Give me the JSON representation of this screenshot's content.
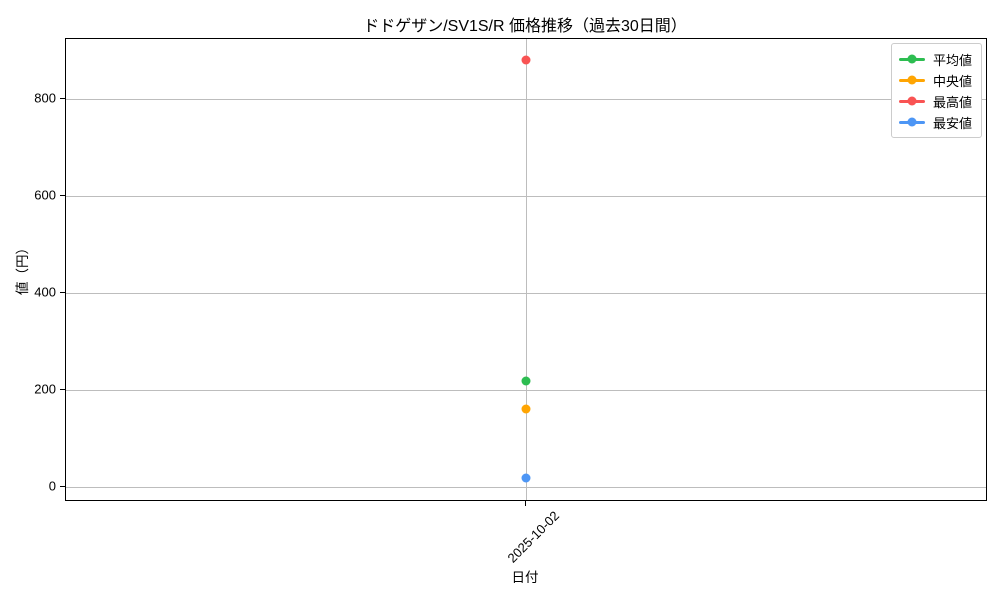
{
  "title": "ドドゲザン/SV1S/R 価格推移（過去30日間）",
  "colors": {
    "background": "#ffffff",
    "grid": "#bdbdbd",
    "spine": "#000000",
    "legend_border": "#cccccc",
    "text": "#000000",
    "series_green": "#2dbd51",
    "series_orange": "#ffa502",
    "series_red": "#f95353",
    "series_blue": "#4d96f5"
  },
  "chart_data": {
    "type": "scatter",
    "title": "ドドゲザン/SV1S/R 価格推移（過去30日間）",
    "xlabel": "日付",
    "ylabel": "値（円）",
    "categories": [
      "2025-10-02"
    ],
    "series": [
      {
        "name": "平均値",
        "color": "#2dbd51",
        "values": [
          218
        ]
      },
      {
        "name": "中央値",
        "color": "#ffa502",
        "values": [
          160
        ]
      },
      {
        "name": "最高値",
        "color": "#f95353",
        "values": [
          880
        ]
      },
      {
        "name": "最安値",
        "color": "#4d96f5",
        "values": [
          18
        ]
      }
    ],
    "yticks": [
      0,
      200,
      400,
      600,
      800
    ],
    "ytick_labels": [
      "0",
      "200",
      "400",
      "600",
      "800"
    ],
    "ylim": [
      -27,
      923
    ],
    "grid": true,
    "legend_position": "upper right",
    "legend_labels": [
      "平均値",
      "中央値",
      "最高値",
      "最安値"
    ]
  }
}
